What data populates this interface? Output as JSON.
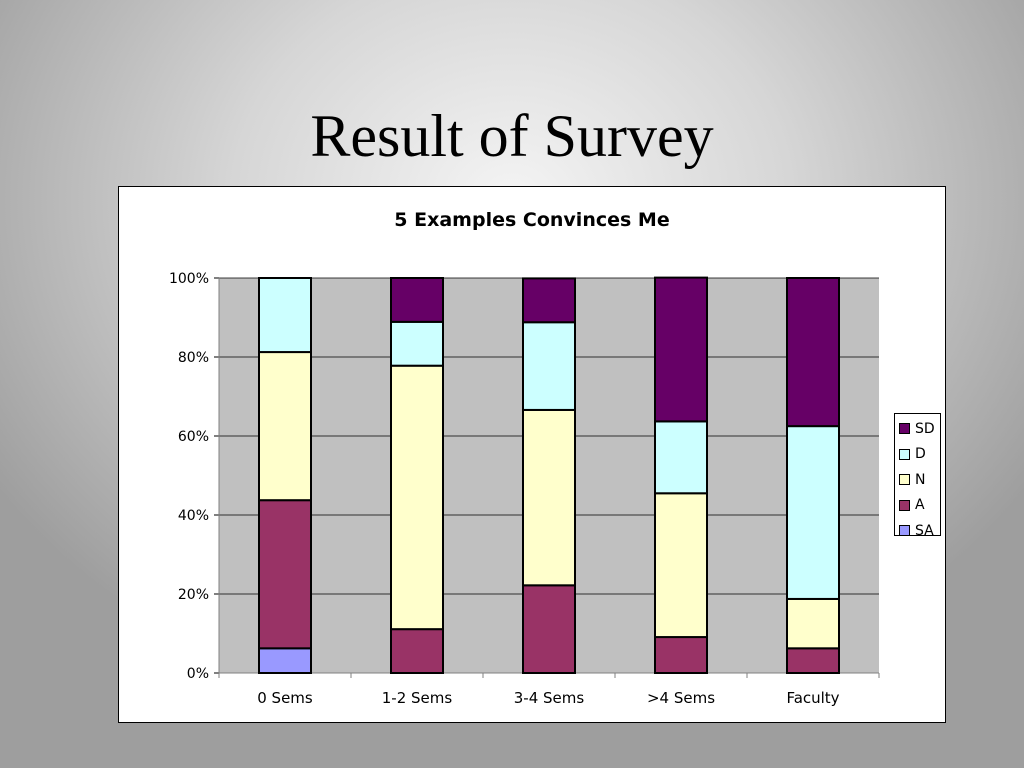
{
  "slide": {
    "title": "Result of Survey"
  },
  "chart_data": {
    "type": "bar",
    "stacked": true,
    "normalized": true,
    "title": "5 Examples Convinces Me",
    "categories": [
      "0 Sems",
      "1-2 Sems",
      "3-4 Sems",
      ">4 Sems",
      "Faculty"
    ],
    "series": [
      {
        "name": "SA",
        "color": "#9999ff",
        "values": [
          6.25,
          0,
          0,
          0,
          0
        ]
      },
      {
        "name": "A",
        "color": "#993366",
        "values": [
          37.5,
          11.1,
          22.2,
          9.1,
          6.25
        ]
      },
      {
        "name": "N",
        "color": "#ffffcc",
        "values": [
          37.5,
          66.7,
          44.4,
          36.4,
          12.5
        ]
      },
      {
        "name": "D",
        "color": "#ccffff",
        "values": [
          18.75,
          11.1,
          22.2,
          18.2,
          43.75
        ]
      },
      {
        "name": "SD",
        "color": "#660066",
        "values": [
          0,
          11.1,
          11.1,
          36.4,
          37.5
        ]
      }
    ],
    "ylim": [
      0,
      100
    ],
    "yticks": [
      "0%",
      "20%",
      "40%",
      "60%",
      "80%",
      "100%"
    ],
    "ytick_values": [
      0,
      20,
      40,
      60,
      80,
      100
    ],
    "grid": true,
    "plot_background": "#c0c0c0",
    "legend_position": "right",
    "legend_order": [
      "SD",
      "D",
      "N",
      "A",
      "SA"
    ],
    "xlabel": "",
    "ylabel": ""
  }
}
